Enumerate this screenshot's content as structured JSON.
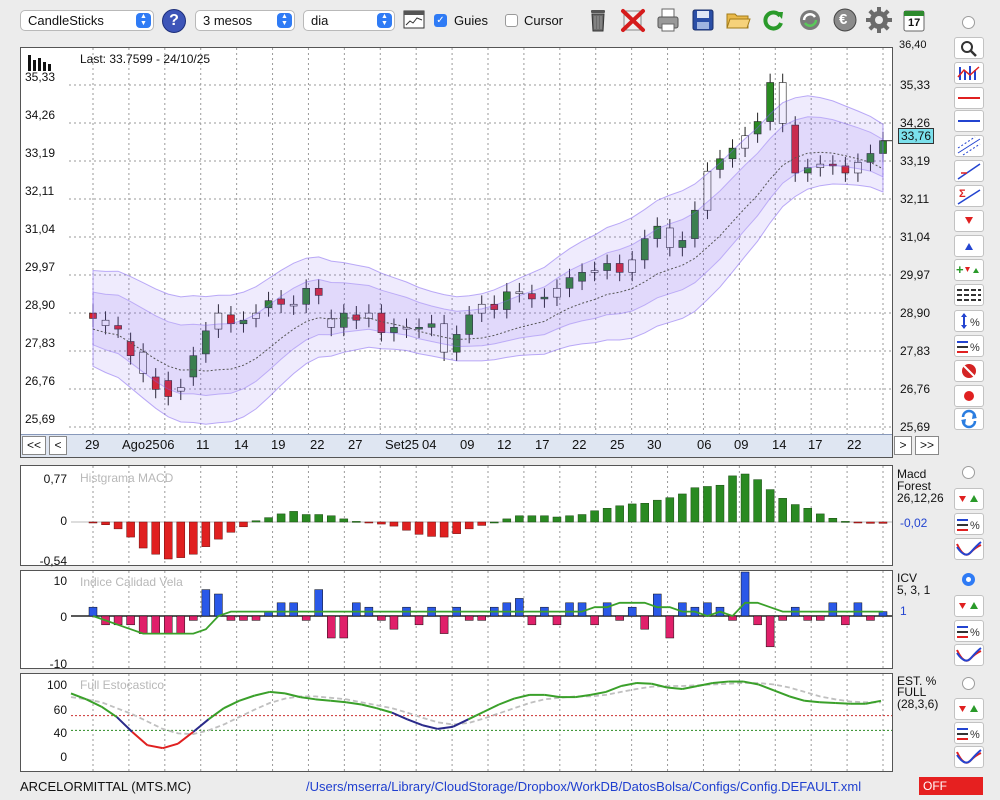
{
  "toolbar": {
    "chart_type": "CandleSticks",
    "period": "3 mesos",
    "interval": "dia",
    "guides_label": "Guies",
    "guides_checked": true,
    "cursor_label": "Cursor",
    "cursor_checked": false,
    "help_label": "?",
    "calendar_day": "17",
    "euro_symbol": "€"
  },
  "main_chart": {
    "last_label": "Last: 33.7599 - 24/10/25",
    "current_price": "33,76",
    "y_ticks": [
      "35,33",
      "34,26",
      "33,19",
      "32,11",
      "31,04",
      "29,97",
      "28,90",
      "27,83",
      "26,76",
      "25,69"
    ],
    "top_partial_tick": "36,40",
    "nav": {
      "first": "<<",
      "prev": "<",
      "next": ">",
      "last": ">>"
    },
    "x_labels": [
      "29",
      "Ago25",
      "06",
      "11",
      "14",
      "19",
      "22",
      "27",
      "Set25",
      "04",
      "09",
      "12",
      "17",
      "22",
      "25",
      "30",
      "06",
      "09",
      "14",
      "17",
      "22"
    ]
  },
  "macd": {
    "title": "Histgrama MACD",
    "y_ticks": [
      "0,77",
      "0",
      "-0,54"
    ],
    "legend_line1": "Macd",
    "legend_line2": "Forest",
    "params": "26,12,26",
    "value": "-0,02",
    "values": [
      -0.01,
      -0.04,
      -0.1,
      -0.22,
      -0.38,
      -0.47,
      -0.54,
      -0.52,
      -0.47,
      -0.36,
      -0.25,
      -0.15,
      -0.07,
      0.02,
      0.07,
      0.13,
      0.17,
      0.12,
      0.12,
      0.1,
      0.05,
      0.01,
      -0.01,
      -0.03,
      -0.06,
      -0.12,
      -0.18,
      -0.21,
      -0.22,
      -0.17,
      -0.1,
      -0.05,
      0.0,
      0.05,
      0.1,
      0.1,
      0.1,
      0.08,
      0.1,
      0.12,
      0.18,
      0.22,
      0.26,
      0.29,
      0.3,
      0.35,
      0.39,
      0.45,
      0.55,
      0.57,
      0.59,
      0.74,
      0.77,
      0.68,
      0.52,
      0.38,
      0.28,
      0.22,
      0.13,
      0.06,
      0.01,
      -0.01,
      -0.02,
      -0.02
    ]
  },
  "icv": {
    "title": "Indice Calidad Vela",
    "y_ticks": [
      "10",
      "0",
      "-10"
    ],
    "legend_line1": "ICV",
    "params": "5, 3, 1",
    "value": "1",
    "values": [
      2,
      -2,
      -2,
      -2,
      -4,
      -4,
      -4,
      -4,
      -1,
      6,
      5,
      -1,
      -1,
      -1,
      1,
      3,
      3,
      -1,
      6,
      -5,
      -5,
      3,
      2,
      -1,
      -3,
      2,
      -2,
      2,
      -4,
      2,
      -1,
      -1,
      2,
      3,
      4,
      -2,
      2,
      -2,
      3,
      3,
      -2,
      3,
      -1,
      2,
      -3,
      5,
      -5,
      3,
      2,
      3,
      2,
      -1,
      10,
      -2,
      -7,
      -1,
      2,
      -1,
      -1,
      3,
      -2,
      3,
      -1,
      1
    ],
    "signal": [
      0,
      -1,
      -2,
      -3,
      -4,
      -4,
      -4,
      -4,
      -4,
      -3,
      0,
      1,
      1,
      1,
      1,
      1,
      1,
      1,
      1,
      1,
      1,
      1,
      1,
      1,
      1,
      1,
      1,
      1,
      1,
      1,
      1,
      1,
      1,
      1,
      1,
      1,
      1,
      1,
      1,
      1,
      2,
      2,
      3,
      3,
      3,
      2,
      2,
      1,
      1,
      0,
      1,
      0,
      3,
      3,
      2,
      1,
      1,
      1,
      1,
      1,
      1,
      1,
      1,
      1
    ]
  },
  "stochastic": {
    "title": "Full Estocastico",
    "y_ticks": [
      "100",
      "60",
      "40",
      "0"
    ],
    "legend_line1": "EST. %",
    "legend_line2": "FULL",
    "params": "(28,3,6)",
    "k": [
      90,
      82,
      72,
      58,
      38,
      20,
      16,
      22,
      38,
      55,
      70,
      80,
      87,
      92,
      90,
      85,
      82,
      80,
      78,
      75,
      70,
      64,
      55,
      47,
      42,
      45,
      55,
      65,
      75,
      83,
      88,
      88,
      85,
      85,
      88,
      92,
      100,
      104,
      103,
      98,
      96,
      100,
      104,
      106,
      106,
      102,
      94,
      86,
      80,
      78,
      77,
      76,
      76,
      80
    ],
    "d": [
      85,
      82,
      78,
      70,
      62,
      52,
      42,
      36,
      35,
      40,
      48,
      58,
      68,
      77,
      83,
      86,
      86,
      84,
      82,
      78,
      74,
      70,
      64,
      57,
      51,
      48,
      50,
      56,
      63,
      70,
      77,
      82,
      84,
      86,
      86,
      88,
      92,
      96,
      99,
      100,
      100,
      101,
      102,
      103,
      104,
      104,
      102,
      98,
      92,
      86,
      82,
      79,
      78,
      78
    ]
  },
  "status": {
    "instrument": "ARCELORMITTAL (MTS.MC)",
    "path": "/Users/mserra/Library/CloudStorage/Dropbox/WorkDB/DatosBolsa/Configs/Config.DEFAULT.xml",
    "off_label": "OFF"
  },
  "colors": {
    "up": "#2a8a22",
    "down": "#e02020",
    "blue_bar": "#2a58e8",
    "pink_bar": "#e0206a",
    "band": "#7c5cf0",
    "stoch_k": "#3aa02a",
    "stoch_low": "#e02020",
    "stoch_mid": "#2a2a8a",
    "stoch_d": "#c0c0c0"
  }
}
